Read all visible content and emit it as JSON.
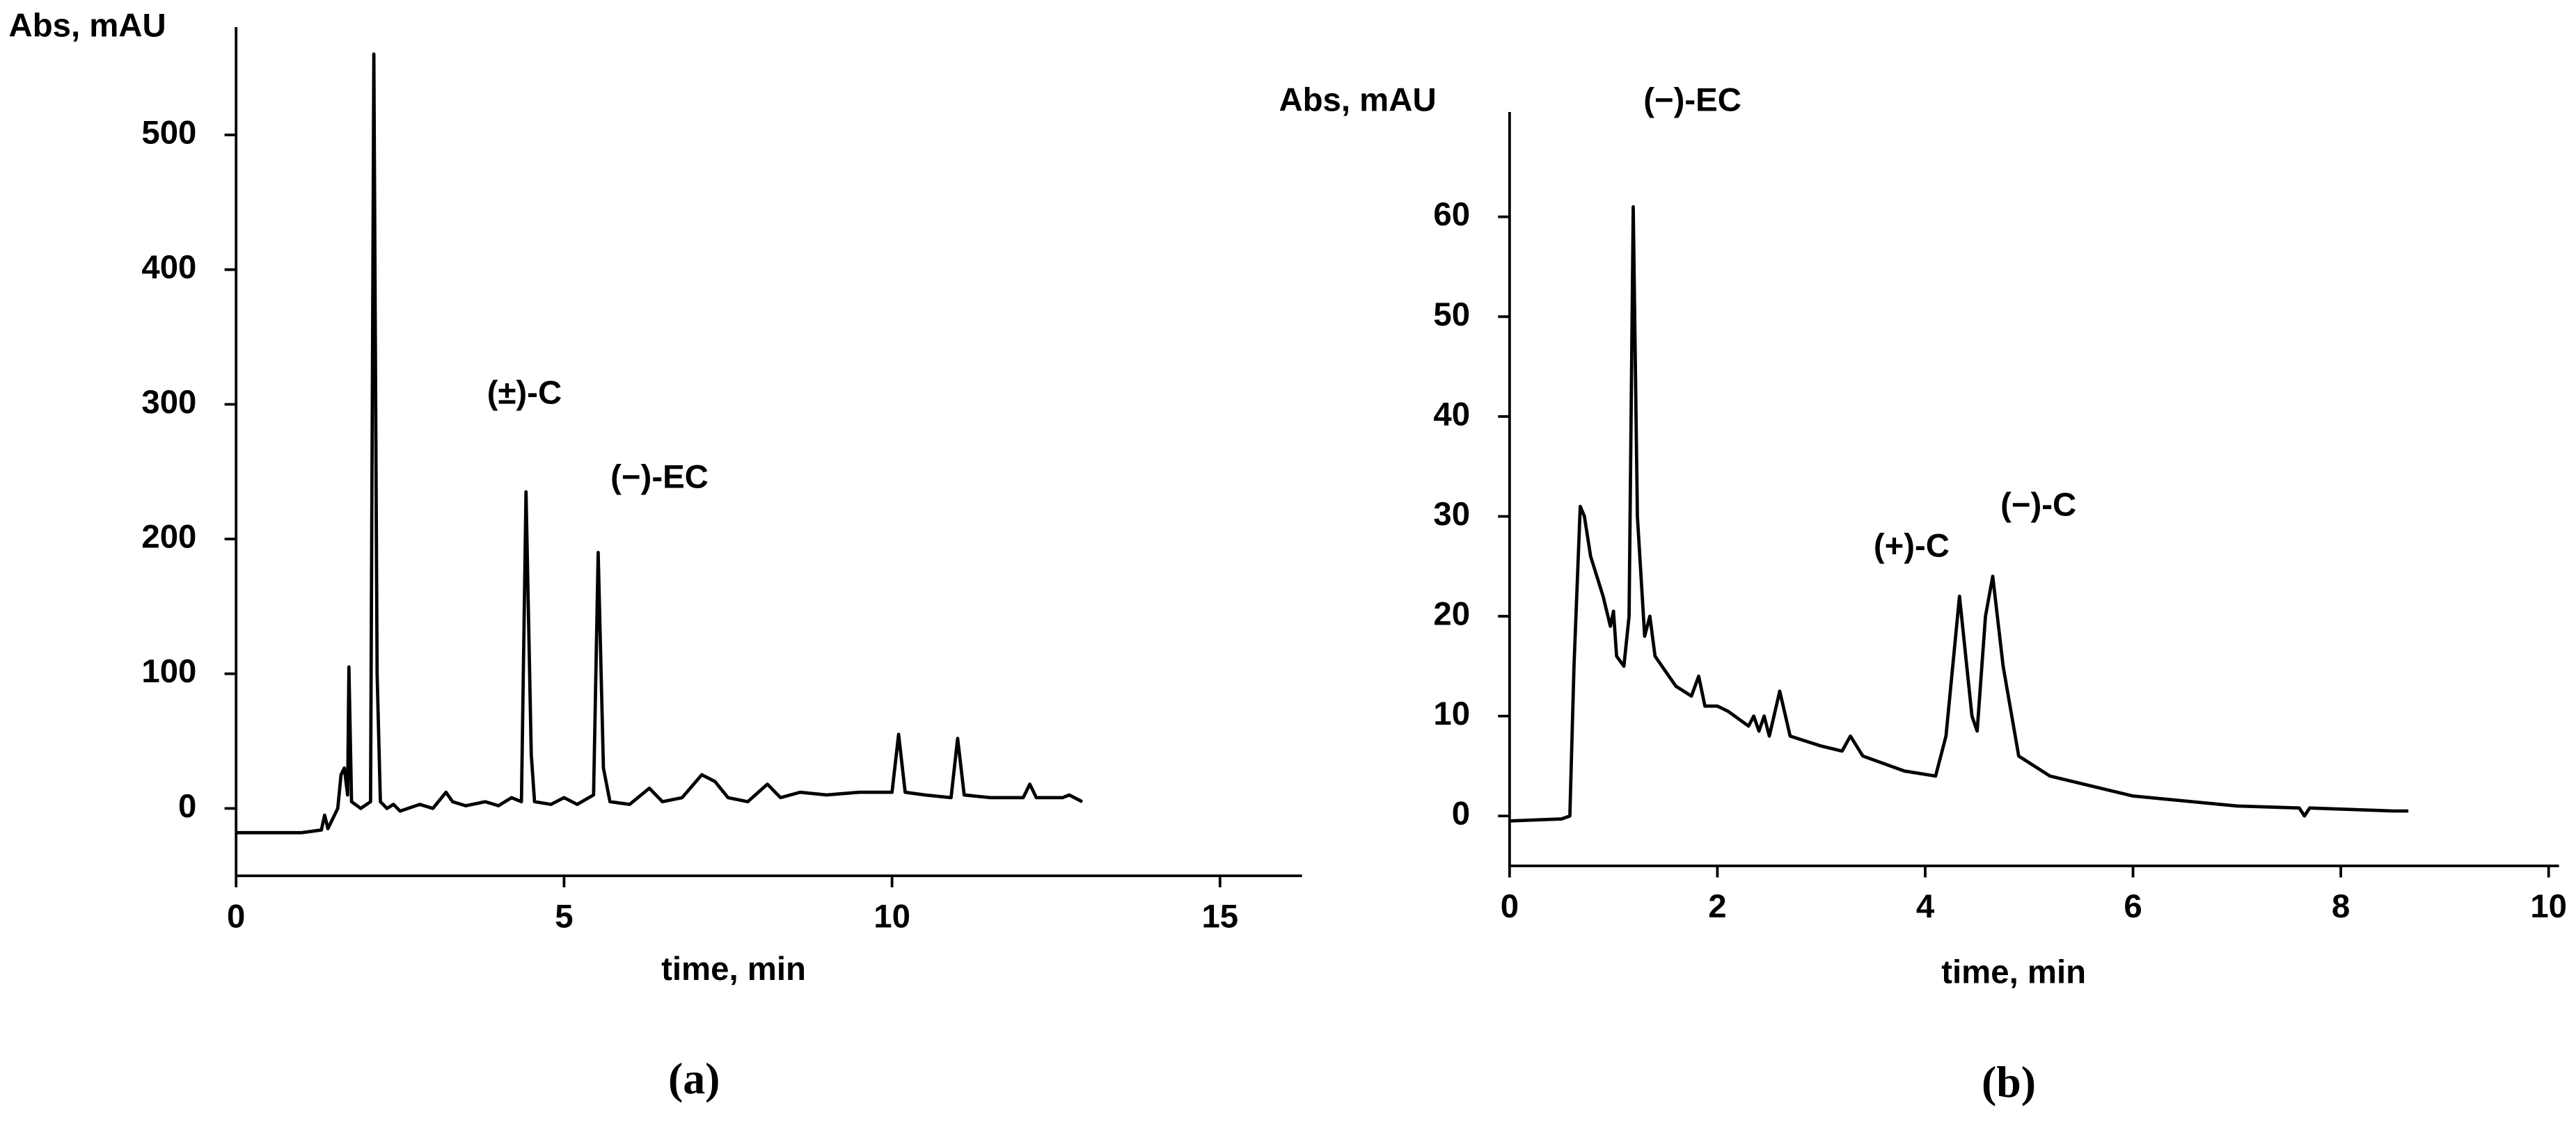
{
  "chart_data": [
    {
      "type": "line",
      "ylabel": "Abs, mAU",
      "xlabel": "time, min",
      "caption": "(a)",
      "annotations": [
        "(±)-C",
        "(−)-EC"
      ],
      "xlim": [
        0,
        16.25
      ],
      "ylim": [
        -50,
        580
      ],
      "xticks": [
        0,
        5,
        10,
        15
      ],
      "yticks": [
        0,
        100,
        200,
        300,
        400,
        500
      ],
      "color": "#000000",
      "x": [
        0,
        1.0,
        1.3,
        1.35,
        1.4,
        1.55,
        1.6,
        1.65,
        1.7,
        1.72,
        1.76,
        1.9,
        2.05,
        2.1,
        2.15,
        2.2,
        2.3,
        2.4,
        2.5,
        2.8,
        3.0,
        3.2,
        3.3,
        3.5,
        3.8,
        4.0,
        4.2,
        4.35,
        4.42,
        4.5,
        4.55,
        4.8,
        5.0,
        5.2,
        5.45,
        5.52,
        5.6,
        5.7,
        6.0,
        6.3,
        6.5,
        6.8,
        7.1,
        7.3,
        7.5,
        7.8,
        8.1,
        8.3,
        8.6,
        9.0,
        9.5,
        10.0,
        10.1,
        10.2,
        10.5,
        10.9,
        11.0,
        11.1,
        11.5,
        12.0,
        12.1,
        12.2,
        12.6,
        12.7,
        12.9
      ],
      "values": [
        -18,
        -18,
        -16,
        -5,
        -15,
        0,
        25,
        30,
        10,
        105,
        5,
        0,
        5,
        560,
        100,
        5,
        0,
        3,
        -2,
        3,
        0,
        12,
        5,
        2,
        5,
        2,
        8,
        5,
        235,
        40,
        5,
        3,
        8,
        3,
        10,
        190,
        30,
        5,
        3,
        15,
        5,
        8,
        25,
        20,
        8,
        5,
        18,
        8,
        12,
        10,
        12,
        12,
        55,
        12,
        10,
        8,
        52,
        10,
        8,
        8,
        18,
        8,
        8,
        10,
        5
      ]
    },
    {
      "type": "line",
      "ylabel": "Abs, mAU",
      "xlabel": "time, min",
      "caption": "(b)",
      "annotations": [
        "(−)-EC",
        "(+)-C",
        "(−)-C"
      ],
      "xlim": [
        0,
        10.1
      ],
      "ylim": [
        -5,
        70.5
      ],
      "xticks": [
        0,
        2,
        4,
        6,
        8,
        10
      ],
      "yticks": [
        0,
        10,
        20,
        30,
        40,
        50,
        60
      ],
      "color": "#000000",
      "x": [
        0,
        0.5,
        0.58,
        0.62,
        0.68,
        0.72,
        0.78,
        0.9,
        0.97,
        1.0,
        1.03,
        1.1,
        1.15,
        1.19,
        1.23,
        1.3,
        1.35,
        1.4,
        1.6,
        1.75,
        1.82,
        1.88,
        2.0,
        2.1,
        2.3,
        2.35,
        2.4,
        2.45,
        2.5,
        2.6,
        2.7,
        3.0,
        3.2,
        3.28,
        3.4,
        3.8,
        4.1,
        4.2,
        4.33,
        4.45,
        4.5,
        4.58,
        4.65,
        4.75,
        4.9,
        5.2,
        6.0,
        7.0,
        7.6,
        7.65,
        7.7,
        8.5,
        8.65
      ],
      "values": [
        -0.5,
        -0.3,
        0,
        15,
        31,
        30,
        26,
        22,
        19,
        20.5,
        16,
        15,
        20,
        61,
        30,
        18,
        20,
        16,
        13,
        12,
        14,
        11,
        11,
        10.5,
        9,
        10,
        8.5,
        10,
        8,
        12.5,
        8,
        7,
        6.5,
        8,
        6,
        4.5,
        4,
        8,
        22,
        10,
        8.5,
        20,
        24,
        15,
        6,
        4,
        2,
        1,
        0.8,
        0,
        0.8,
        0.5,
        0.5
      ]
    }
  ]
}
